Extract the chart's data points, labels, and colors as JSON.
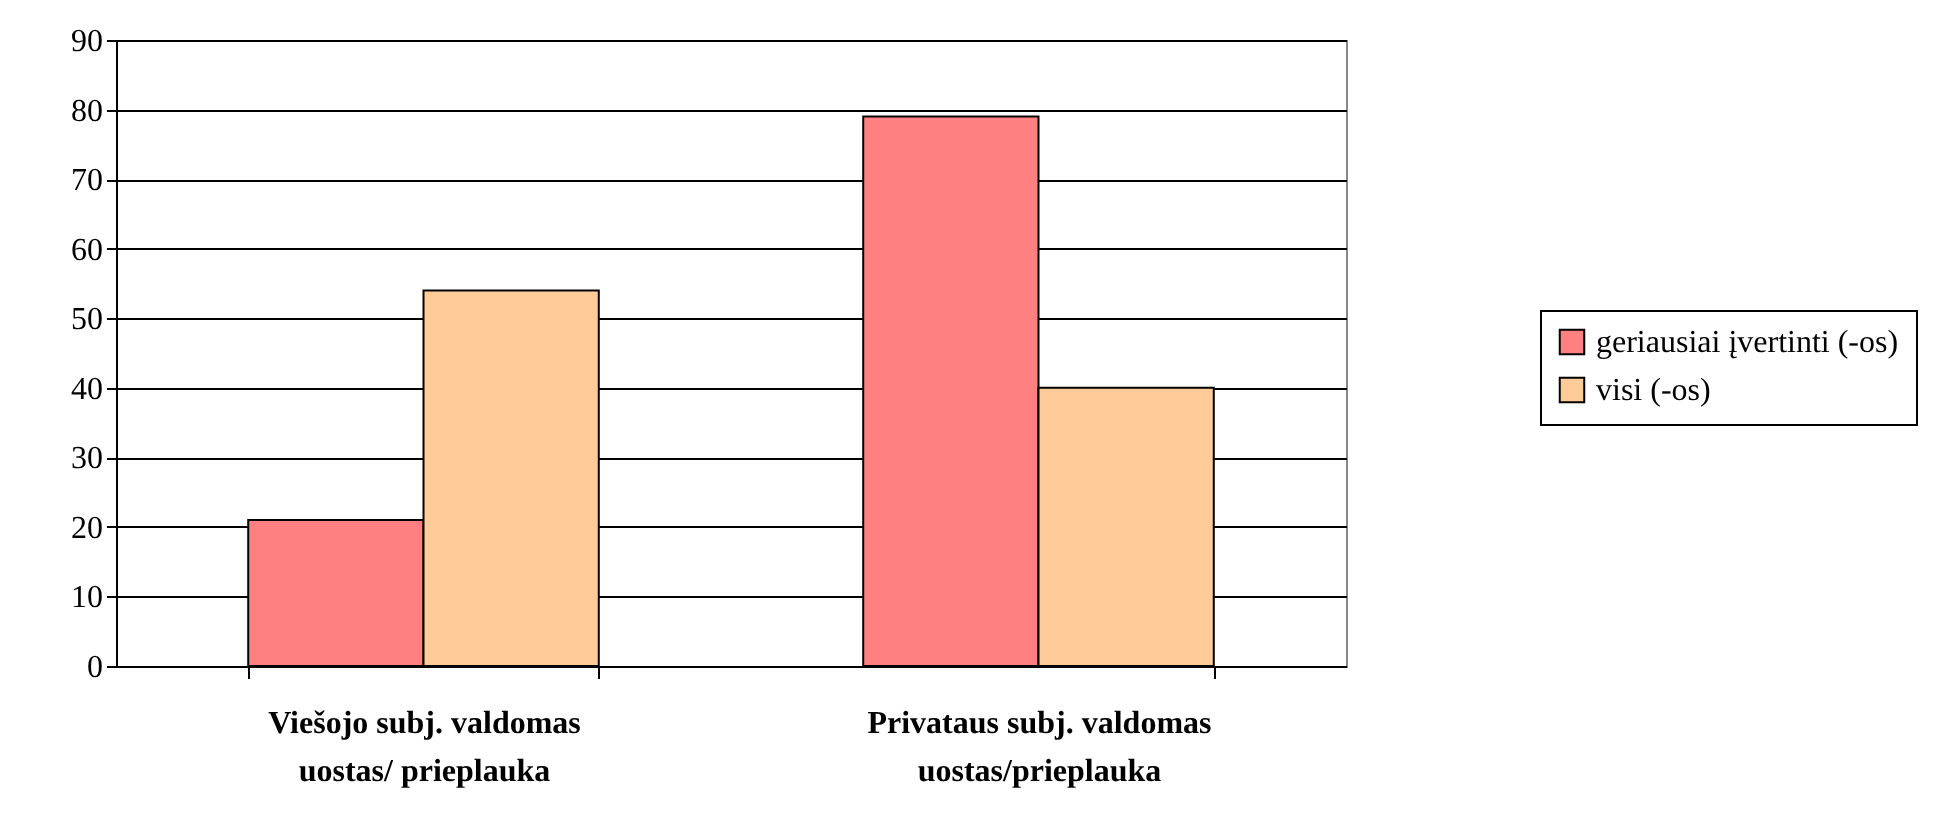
{
  "chart_data": {
    "type": "bar",
    "categories": [
      "Viešojo subj. valdomas uostas/ prieplauka",
      "Privataus subj. valdomas uostas/prieplauka"
    ],
    "series": [
      {
        "name": "geriausiai įvertinti (-os)",
        "color": "#ff8080",
        "values": [
          21,
          79
        ]
      },
      {
        "name": "visi (-os)",
        "color": "#ffcc99",
        "values": [
          54,
          40
        ]
      }
    ],
    "ylim": [
      0,
      90
    ],
    "yticks": [
      0,
      10,
      20,
      30,
      40,
      50,
      60,
      70,
      80,
      90
    ],
    "grid": "y",
    "legend": "right"
  }
}
